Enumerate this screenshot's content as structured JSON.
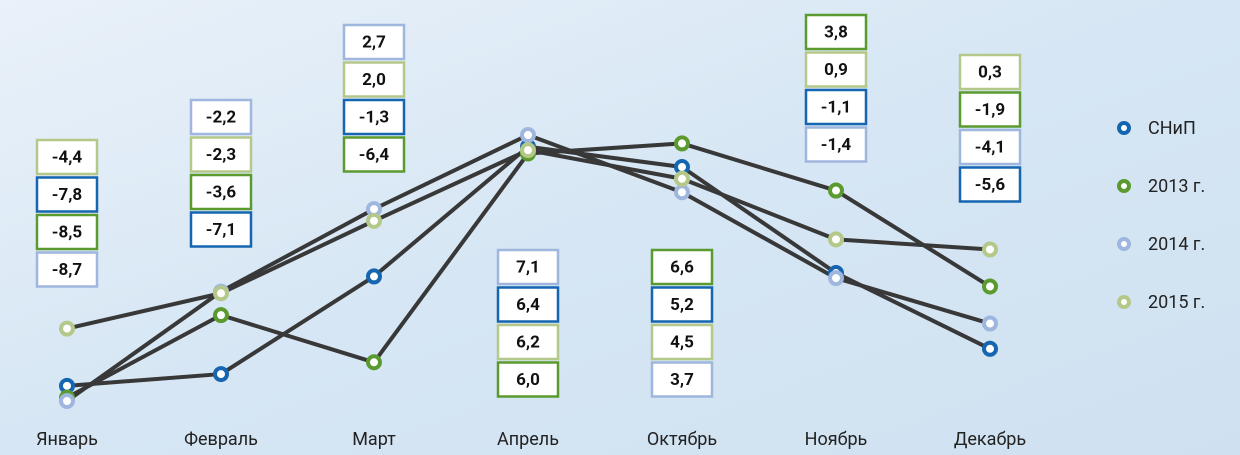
{
  "chart_data": {
    "type": "line",
    "categories": [
      "Январь",
      "Февраль",
      "Март",
      "Апрель",
      "Октябрь",
      "Ноябрь",
      "Декабрь"
    ],
    "line_color": "#383838",
    "series": [
      {
        "name": "СНиП",
        "color": "#1565b0",
        "values": [
          -7.8,
          -7.1,
          -1.3,
          6.4,
          5.2,
          -1.1,
          -5.6
        ],
        "value_labels": [
          "-7,8",
          "-7,1",
          "-1,3",
          "6,4",
          "5,2",
          "-1,1",
          "-5,6"
        ]
      },
      {
        "name": "2013 г.",
        "color": "#5a9a2e",
        "values": [
          -8.5,
          -3.6,
          -6.4,
          6.0,
          6.6,
          3.8,
          -1.9
        ],
        "value_labels": [
          "-8,5",
          "-3,6",
          "-6,4",
          "6,0",
          "6,6",
          "3,8",
          "-1,9"
        ]
      },
      {
        "name": "2014 г.",
        "color": "#9fb6de",
        "values": [
          -8.7,
          -2.2,
          2.7,
          7.1,
          3.7,
          -1.4,
          -4.1
        ],
        "value_labels": [
          "-8,7",
          "-2,2",
          "2,7",
          "7,1",
          "3,7",
          "-1,4",
          "-4,1"
        ]
      },
      {
        "name": "2015 г.",
        "color": "#b4c88a",
        "values": [
          -4.4,
          -2.3,
          2.0,
          6.2,
          4.5,
          0.9,
          0.3
        ],
        "value_labels": [
          "-4,4",
          "-2,3",
          "2,0",
          "6,2",
          "4,5",
          "0,9",
          "0,3"
        ]
      }
    ]
  }
}
